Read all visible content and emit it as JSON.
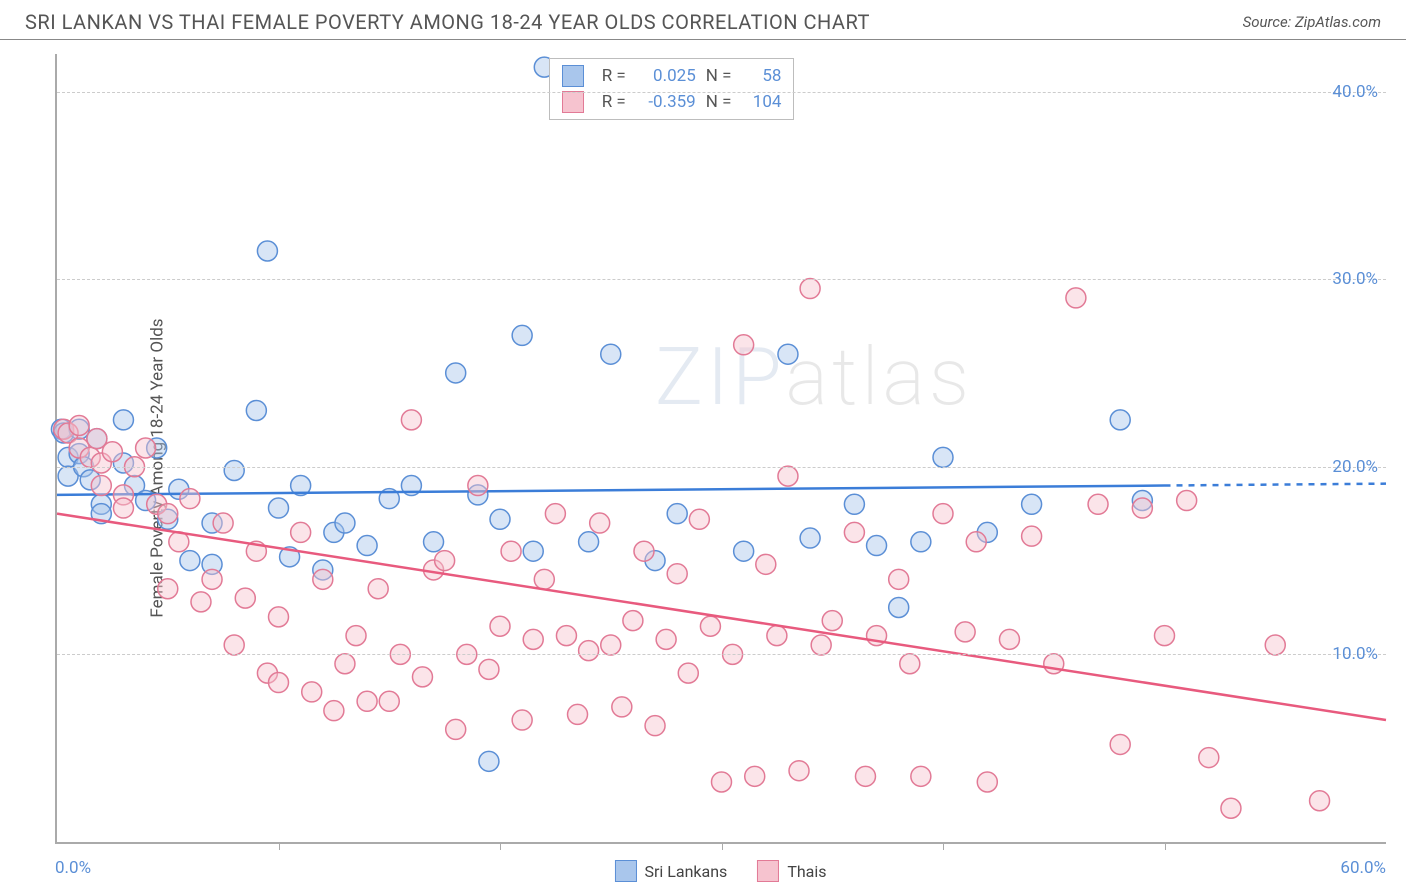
{
  "header": {
    "title": "SRI LANKAN VS THAI FEMALE POVERTY AMONG 18-24 YEAR OLDS CORRELATION CHART",
    "source": "Source: ZipAtlas.com"
  },
  "chart": {
    "type": "scatter",
    "ylabel": "Female Poverty Among 18-24 Year Olds",
    "watermark": "ZIPatlas",
    "background_color": "#ffffff",
    "grid_color": "#cccccc",
    "axis_color": "#aaaaaa",
    "xlim": [
      0,
      60
    ],
    "ylim": [
      0,
      42
    ],
    "x_label_min": "0.0%",
    "x_label_max": "60.0%",
    "y_ticks": [
      {
        "v": 10,
        "label": "10.0%"
      },
      {
        "v": 20,
        "label": "20.0%"
      },
      {
        "v": 30,
        "label": "30.0%"
      },
      {
        "v": 40,
        "label": "40.0%"
      }
    ],
    "x_tick_step": 10,
    "marker_radius": 10,
    "marker_opacity": 0.45,
    "series": [
      {
        "name": "Sri Lankans",
        "color_fill": "#a9c6ec",
        "color_stroke": "#5b8fd6",
        "trend_color": "#3b7dd8",
        "correlation_R": "0.025",
        "correlation_N": "58",
        "trend": {
          "x1": 0,
          "y1": 18.5,
          "x2": 50,
          "y2": 19.0,
          "dash_after": 50,
          "x_end": 60,
          "y_end": 19.1
        },
        "points": [
          [
            0.2,
            22
          ],
          [
            0.3,
            21.8
          ],
          [
            0.5,
            20.5
          ],
          [
            0.5,
            19.5
          ],
          [
            1,
            22
          ],
          [
            1,
            20.7
          ],
          [
            1.2,
            20
          ],
          [
            1.5,
            19.3
          ],
          [
            1.8,
            21.5
          ],
          [
            2,
            18
          ],
          [
            2,
            17.5
          ],
          [
            3,
            22.5
          ],
          [
            3,
            20.2
          ],
          [
            3.5,
            19
          ],
          [
            4,
            18.2
          ],
          [
            4.5,
            21
          ],
          [
            5,
            17.2
          ],
          [
            5.5,
            18.8
          ],
          [
            6,
            15
          ],
          [
            7,
            14.8
          ],
          [
            7,
            17
          ],
          [
            8,
            19.8
          ],
          [
            9,
            23
          ],
          [
            9.5,
            31.5
          ],
          [
            10,
            17.8
          ],
          [
            10.5,
            15.2
          ],
          [
            11,
            19
          ],
          [
            12,
            14.5
          ],
          [
            12.5,
            16.5
          ],
          [
            13,
            17
          ],
          [
            14,
            15.8
          ],
          [
            15,
            18.3
          ],
          [
            16,
            19
          ],
          [
            17,
            16
          ],
          [
            18,
            25
          ],
          [
            19,
            18.5
          ],
          [
            19.5,
            4.3
          ],
          [
            20,
            17.2
          ],
          [
            21,
            27
          ],
          [
            21.5,
            15.5
          ],
          [
            22,
            41.3
          ],
          [
            24,
            16
          ],
          [
            25,
            26
          ],
          [
            27,
            15
          ],
          [
            28,
            17.5
          ],
          [
            30,
            41
          ],
          [
            31,
            15.5
          ],
          [
            33,
            26
          ],
          [
            34,
            16.2
          ],
          [
            36,
            18
          ],
          [
            37,
            15.8
          ],
          [
            38,
            12.5
          ],
          [
            39,
            16
          ],
          [
            40,
            20.5
          ],
          [
            42,
            16.5
          ],
          [
            44,
            18
          ],
          [
            48,
            22.5
          ],
          [
            49,
            18.2
          ]
        ]
      },
      {
        "name": "Thais",
        "color_fill": "#f6c3cf",
        "color_stroke": "#e27a96",
        "trend_color": "#e85a7e",
        "correlation_R": "-0.359",
        "correlation_N": "104",
        "trend": {
          "x1": 0,
          "y1": 17.5,
          "x2": 60,
          "y2": 6.5
        },
        "points": [
          [
            0.3,
            22
          ],
          [
            0.5,
            21.8
          ],
          [
            1,
            22.2
          ],
          [
            1,
            21
          ],
          [
            1.5,
            20.5
          ],
          [
            1.8,
            21.5
          ],
          [
            2,
            20.2
          ],
          [
            2,
            19
          ],
          [
            2.5,
            20.8
          ],
          [
            3,
            18.5
          ],
          [
            3,
            17.8
          ],
          [
            3.5,
            20
          ],
          [
            4,
            21
          ],
          [
            4.5,
            18
          ],
          [
            5,
            13.5
          ],
          [
            5,
            17.5
          ],
          [
            5.5,
            16
          ],
          [
            6,
            18.3
          ],
          [
            6.5,
            12.8
          ],
          [
            7,
            14
          ],
          [
            7.5,
            17
          ],
          [
            8,
            10.5
          ],
          [
            8.5,
            13
          ],
          [
            9,
            15.5
          ],
          [
            9.5,
            9
          ],
          [
            10,
            8.5
          ],
          [
            10,
            12
          ],
          [
            11,
            16.5
          ],
          [
            11.5,
            8
          ],
          [
            12,
            14
          ],
          [
            12.5,
            7
          ],
          [
            13,
            9.5
          ],
          [
            13.5,
            11
          ],
          [
            14,
            7.5
          ],
          [
            14.5,
            13.5
          ],
          [
            15,
            7.5
          ],
          [
            15.5,
            10
          ],
          [
            16,
            22.5
          ],
          [
            16.5,
            8.8
          ],
          [
            17,
            14.5
          ],
          [
            17.5,
            15
          ],
          [
            18,
            6
          ],
          [
            18.5,
            10
          ],
          [
            19,
            19
          ],
          [
            19.5,
            9.2
          ],
          [
            20,
            11.5
          ],
          [
            20.5,
            15.5
          ],
          [
            21,
            6.5
          ],
          [
            21.5,
            10.8
          ],
          [
            22,
            14
          ],
          [
            22.5,
            17.5
          ],
          [
            23,
            11
          ],
          [
            23.5,
            6.8
          ],
          [
            24,
            10.2
          ],
          [
            24.5,
            17
          ],
          [
            25,
            10.5
          ],
          [
            25.5,
            7.2
          ],
          [
            26,
            11.8
          ],
          [
            26.5,
            15.5
          ],
          [
            27,
            6.2
          ],
          [
            27.5,
            10.8
          ],
          [
            28,
            14.3
          ],
          [
            28.5,
            9
          ],
          [
            29,
            17.2
          ],
          [
            29.5,
            11.5
          ],
          [
            30,
            3.2
          ],
          [
            30.5,
            10
          ],
          [
            31,
            26.5
          ],
          [
            31.5,
            3.5
          ],
          [
            32,
            14.8
          ],
          [
            32.5,
            11
          ],
          [
            33,
            19.5
          ],
          [
            33.5,
            3.8
          ],
          [
            34,
            29.5
          ],
          [
            34.5,
            10.5
          ],
          [
            35,
            11.8
          ],
          [
            36,
            16.5
          ],
          [
            36.5,
            3.5
          ],
          [
            37,
            11
          ],
          [
            38,
            14
          ],
          [
            38.5,
            9.5
          ],
          [
            39,
            3.5
          ],
          [
            40,
            17.5
          ],
          [
            41,
            11.2
          ],
          [
            41.5,
            16
          ],
          [
            42,
            3.2
          ],
          [
            43,
            10.8
          ],
          [
            44,
            16.3
          ],
          [
            45,
            9.5
          ],
          [
            46,
            29
          ],
          [
            47,
            18
          ],
          [
            48,
            5.2
          ],
          [
            49,
            17.8
          ],
          [
            50,
            11
          ],
          [
            51,
            18.2
          ],
          [
            52,
            4.5
          ],
          [
            53,
            1.8
          ],
          [
            55,
            10.5
          ],
          [
            57,
            2.2
          ]
        ]
      }
    ]
  },
  "legend_labels": {
    "R": "R =",
    "N": "N ="
  }
}
